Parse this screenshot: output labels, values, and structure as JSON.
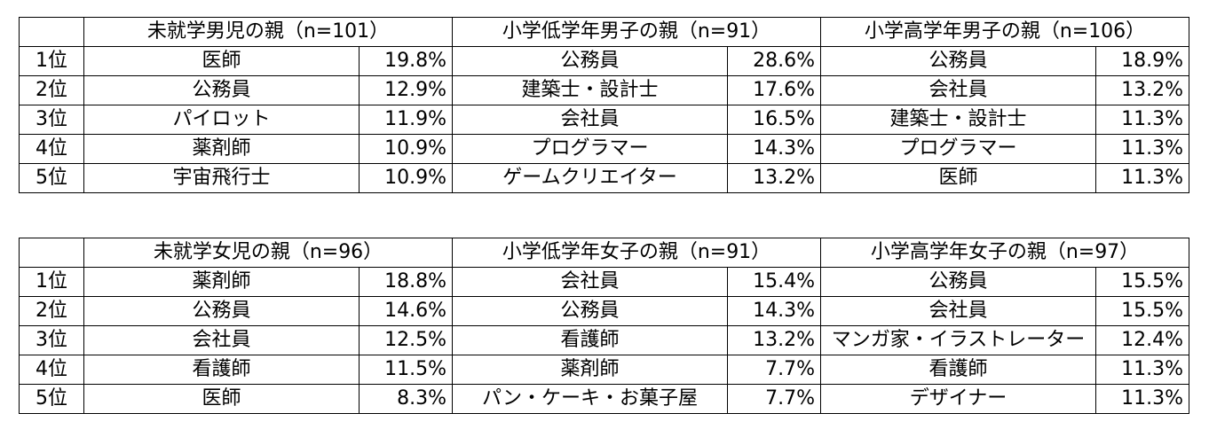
{
  "tables": [
    {
      "groups": [
        "未就学男児の親（n=101）",
        "小学低学年男子の親（n=91）",
        "小学高学年男子の親（n=106）"
      ],
      "rows": [
        {
          "rank": "1位",
          "cells": [
            [
              "医師",
              "19.8%"
            ],
            [
              "公務員",
              "28.6%"
            ],
            [
              "公務員",
              "18.9%"
            ]
          ]
        },
        {
          "rank": "2位",
          "cells": [
            [
              "公務員",
              "12.9%"
            ],
            [
              "建築士・設計士",
              "17.6%"
            ],
            [
              "会社員",
              "13.2%"
            ]
          ]
        },
        {
          "rank": "3位",
          "cells": [
            [
              "パイロット",
              "11.9%"
            ],
            [
              "会社員",
              "16.5%"
            ],
            [
              "建築士・設計士",
              "11.3%"
            ]
          ]
        },
        {
          "rank": "4位",
          "cells": [
            [
              "薬剤師",
              "10.9%"
            ],
            [
              "プログラマー",
              "14.3%"
            ],
            [
              "プログラマー",
              "11.3%"
            ]
          ]
        },
        {
          "rank": "5位",
          "cells": [
            [
              "宇宙飛行士",
              "10.9%"
            ],
            [
              "ゲームクリエイター",
              "13.2%"
            ],
            [
              "医師",
              "11.3%"
            ]
          ]
        }
      ]
    },
    {
      "groups": [
        "未就学女児の親（n=96）",
        "小学低学年女子の親（n=91）",
        "小学高学年女子の親（n=97）"
      ],
      "rows": [
        {
          "rank": "1位",
          "cells": [
            [
              "薬剤師",
              "18.8%"
            ],
            [
              "会社員",
              "15.4%"
            ],
            [
              "公務員",
              "15.5%"
            ]
          ]
        },
        {
          "rank": "2位",
          "cells": [
            [
              "公務員",
              "14.6%"
            ],
            [
              "公務員",
              "14.3%"
            ],
            [
              "会社員",
              "15.5%"
            ]
          ]
        },
        {
          "rank": "3位",
          "cells": [
            [
              "会社員",
              "12.5%"
            ],
            [
              "看護師",
              "13.2%"
            ],
            [
              "マンガ家・イラストレーター",
              "12.4%"
            ]
          ]
        },
        {
          "rank": "4位",
          "cells": [
            [
              "看護師",
              "11.5%"
            ],
            [
              "薬剤師",
              "7.7%"
            ],
            [
              "看護師",
              "11.3%"
            ]
          ]
        },
        {
          "rank": "5位",
          "cells": [
            [
              "医師",
              "8.3%"
            ],
            [
              "パン・ケーキ・お菓子屋",
              "7.7%"
            ],
            [
              "デザイナー",
              "11.3%"
            ]
          ]
        }
      ]
    }
  ]
}
